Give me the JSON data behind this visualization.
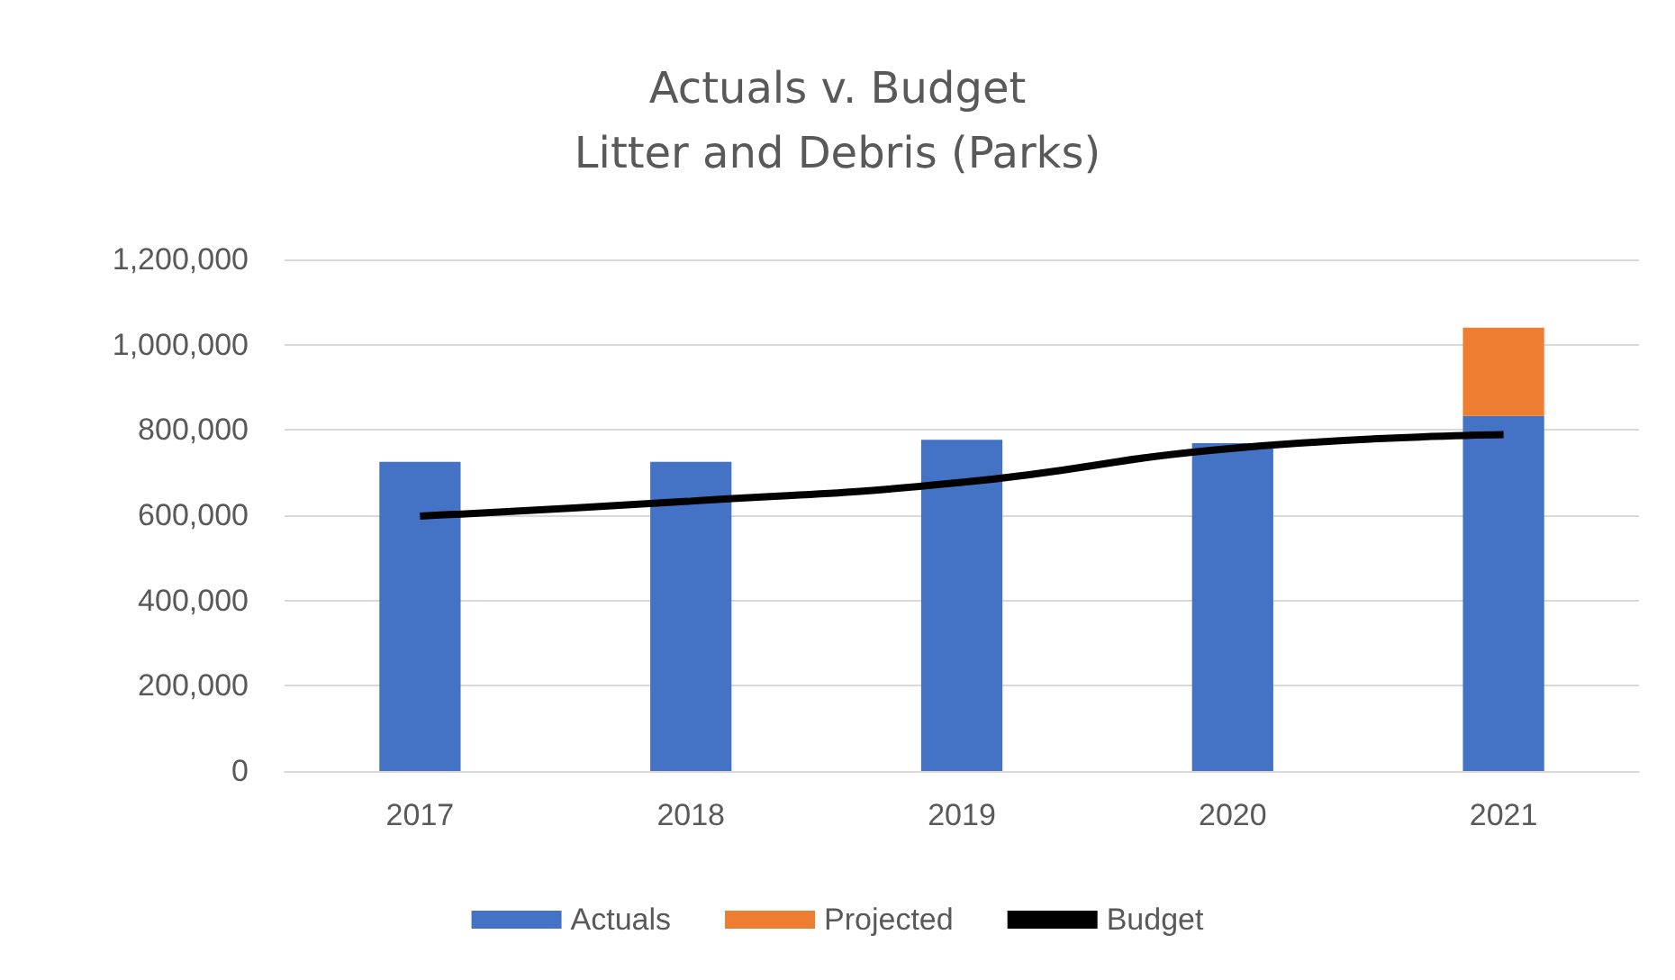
{
  "chart_data": {
    "type": "bar",
    "title": "Actuals v. Budget\nLitter and Debris (Parks)",
    "categories": [
      "2017",
      "2018",
      "2019",
      "2020",
      "2021"
    ],
    "stacked": true,
    "series": [
      {
        "name": "Actuals",
        "color": "#4472c4",
        "values": [
          725000,
          725000,
          777000,
          769000,
          833000
        ]
      },
      {
        "name": "Projected",
        "color": "#ed7d31",
        "values": [
          null,
          null,
          null,
          null,
          207000
        ]
      },
      {
        "name": "Budget",
        "type": "line",
        "color": "#000000",
        "values": [
          598000,
          633000,
          677000,
          757000,
          789000
        ]
      }
    ],
    "ylim": [
      0,
      1200000
    ],
    "yticks": [
      0,
      {
        "value": 200000,
        "label": "200,000"
      },
      {
        "value": 400000,
        "label": "400,000"
      },
      {
        "value": 600000,
        "label": "600,000"
      },
      {
        "value": 800000,
        "label": "800,000"
      },
      {
        "value": 1000000,
        "label": "1,000,000"
      },
      {
        "value": 1200000,
        "label": "1,200,000"
      }
    ],
    "grid": "y",
    "legend": "bottom",
    "marker": "none"
  }
}
